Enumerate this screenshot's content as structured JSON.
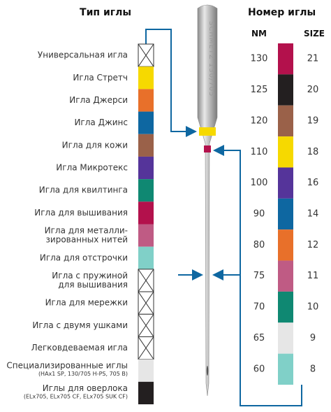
{
  "left_title": "Тип иглы",
  "right_title": "Номер иглы",
  "nm_header": "NM",
  "size_header": "SIZE",
  "needle_text": "SCHMETZ 130/705",
  "needle_types": [
    {
      "lines": [
        "Универсальная игла"
      ],
      "crossed": true
    },
    {
      "lines": [
        "Игла Стретч"
      ],
      "color": "#f6d900"
    },
    {
      "lines": [
        "Игла Джерси"
      ],
      "color": "#e8702a"
    },
    {
      "lines": [
        "Игла Джинс"
      ],
      "color": "#0e67a1"
    },
    {
      "lines": [
        "Игла для кожи"
      ],
      "color": "#9a6149"
    },
    {
      "lines": [
        "Игла Микротекс"
      ],
      "color": "#55349a"
    },
    {
      "lines": [
        "Игла для квилтинга"
      ],
      "color": "#0f8872"
    },
    {
      "lines": [
        "Игла для вышивания"
      ],
      "color": "#b3114c"
    },
    {
      "lines": [
        "Игла для металли-",
        "зированных нитей"
      ],
      "color": "#bf5b84"
    },
    {
      "lines": [
        "Игла для отстрочки"
      ],
      "color": "#80d0c8"
    },
    {
      "lines": [
        "Игла с пружиной",
        "для вышивания"
      ],
      "crossed": true
    },
    {
      "lines": [
        "Игла для мережки"
      ],
      "crossed": true
    },
    {
      "lines": [
        "Игла с двумя ушками"
      ],
      "crossed": true
    },
    {
      "lines": [
        "Легковдеваемая игла"
      ],
      "crossed": true
    },
    {
      "lines": [
        "Специализированные иглы"
      ],
      "note": "(HAx1 SP, 130/705 H-PS, 705 B)",
      "color": "#e6e6e6"
    },
    {
      "lines": [
        "Иглы для оверлока"
      ],
      "note": "(ELx705, ELx705 CF, ELx705 SUK CF)",
      "color": "#231f20"
    }
  ],
  "sizes": [
    {
      "nm": 130,
      "size": 21,
      "color": "#b3114c"
    },
    {
      "nm": 125,
      "size": 20,
      "color": "#231f20"
    },
    {
      "nm": 120,
      "size": 19,
      "color": "#9a6149"
    },
    {
      "nm": 110,
      "size": 18,
      "color": "#f6d900"
    },
    {
      "nm": 100,
      "size": 16,
      "color": "#55349a"
    },
    {
      "nm": 90,
      "size": 14,
      "color": "#0e67a1"
    },
    {
      "nm": 80,
      "size": 12,
      "color": "#e8702a"
    },
    {
      "nm": 75,
      "size": 11,
      "color": "#bf5b84"
    },
    {
      "nm": 70,
      "size": 10,
      "color": "#0f8872"
    },
    {
      "nm": 65,
      "size": 9,
      "color": "#e6e6e6"
    },
    {
      "nm": 60,
      "size": 8,
      "color": "#80d0c8"
    }
  ]
}
